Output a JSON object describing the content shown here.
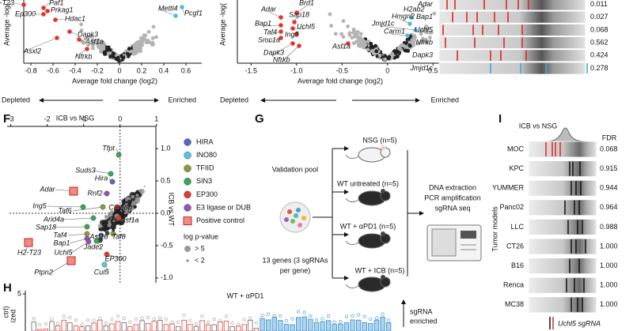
{
  "panel_a": {
    "y_axis_label": "Average -log(",
    "x_axis_label": "Average fold change (log2)",
    "xlim": [
      -0.85,
      0.7
    ],
    "xticks": [
      -0.8,
      -0.6,
      -0.4,
      -0.2,
      0,
      0.2,
      0.4,
      0.6
    ],
    "genes": [
      "H2-T23",
      "Paf1",
      "Prkag1",
      "Ep300",
      "Hdac1",
      "Dapk3",
      "Asf1a",
      "Asxl2",
      "Nfrkb",
      "Mettl4",
      "Pcgf1"
    ],
    "depleted": "Depleted",
    "enriched": "Enriched"
  },
  "panel_b": {
    "y_axis_label": "Average -log(",
    "x_axis_label": "Average fold change (log2)",
    "xlim": [
      -1.65,
      0.75
    ],
    "xticks": [
      -1.5,
      {
        "value": -1,
        "label": "-1.0"
      },
      -0.5,
      0,
      0.5
    ],
    "genes": [
      "Brd1",
      "Adar",
      "Sap18",
      "Bap1",
      "Uchl5",
      "Taf4",
      "Ing5",
      "Smc1a",
      "Dapk3",
      "Nfrkb",
      "Asf1a",
      "H2ab2",
      "Hmgn2",
      "Jmjd1c",
      "Carm1"
    ],
    "depleted": "Depleted",
    "enriched": "Enriched"
  },
  "panel_c": {
    "rows": [
      {
        "gene": "Adar",
        "fdr": "0.011"
      },
      {
        "gene": "Bap1",
        "fdr": "0.027"
      },
      {
        "gene": "Uchl5",
        "fdr": "0.068"
      },
      {
        "gene": "Nfrkb",
        "fdr": "0.562"
      },
      {
        "gene": "Dapk3",
        "fdr": "0.424"
      },
      {
        "gene": "Jmjd1c",
        "fdr": "0.278"
      }
    ]
  },
  "panel_f": {
    "label": "F",
    "title": "ICB vs NSG",
    "y_axis_label": "ICB vs WT",
    "xlim": [
      -3.1,
      1.2
    ],
    "xticks": [
      -3,
      -2,
      -1,
      0,
      1
    ],
    "ylim": [
      -1.1,
      1.1
    ],
    "yticks": [
      {
        "value": 1,
        "label": "1.0"
      },
      0.5,
      {
        "value": 0,
        "label": "0.0"
      },
      -0.5,
      {
        "value": -1,
        "label": "-1.0"
      }
    ],
    "legend": [
      {
        "name": "HIRA",
        "color": "#5b67b3"
      },
      {
        "name": "INO80",
        "color": "#5cc3dc"
      },
      {
        "name": "TFIID",
        "color": "#8a9a3c"
      },
      {
        "name": "SIN3",
        "color": "#3ba656"
      },
      {
        "name": "EP300",
        "color": "#e03c32"
      },
      {
        "name": "E3 ligase or DUB",
        "color": "#9256b0"
      },
      {
        "name": "Positive control",
        "color": "#f28a80"
      }
    ],
    "size_legend": {
      "title": "log p-value",
      "items": [
        "> 5",
        "< 2"
      ]
    },
    "genes": [
      "Tfpt",
      "Suds3",
      "Hira",
      "Rnf2",
      "Adar",
      "Taf6",
      "Ing5",
      "Arid4a",
      "Sap18",
      "Taf4",
      "Bap1",
      "Uchl5",
      "H2-T23",
      "Ptpn2",
      "Jade2",
      "Asf1b",
      "Taf8",
      "Crebbp",
      "Asf1a",
      "EP300",
      "Cul5"
    ]
  },
  "panel_g": {
    "label": "G",
    "pool": "Validation pool",
    "pool_note": [
      "13 genes (3 sgRNAs",
      "per gene)"
    ],
    "groups": [
      "NSG (n=5)",
      "WT untreated (n=5)",
      "WT + αPD1 (n=5)",
      "WT + ICB (n=5)"
    ],
    "steps": [
      "DNA extraction",
      "PCR amplification",
      "sgRNA seq"
    ]
  },
  "panel_h": {
    "label": "H",
    "title": "WT + αPD1",
    "y_axis_label": [
      "ctrl)",
      "ized"
    ],
    "y_tick": "5",
    "note": [
      "sgRNA",
      "enriched"
    ]
  },
  "panel_i": {
    "label": "I",
    "title": "ICB vs NSG",
    "fdr_header": "FDR",
    "y_axis_label": "Tumor models",
    "rows": [
      {
        "model": "MOC",
        "fdr": "0.068"
      },
      {
        "model": "KPC",
        "fdr": "0.915"
      },
      {
        "model": "YUMMER",
        "fdr": "0.944"
      },
      {
        "model": "Panc02",
        "fdr": "0.964"
      },
      {
        "model": "LLC",
        "fdr": "0.988"
      },
      {
        "model": "CT26",
        "fdr": "1.000"
      },
      {
        "model": "B16",
        "fdr": "1.000"
      },
      {
        "model": "Renca",
        "fdr": "1.000"
      },
      {
        "model": "MC38",
        "fdr": "1.000"
      }
    ],
    "legend": "Uchl5 sgRNA"
  }
}
